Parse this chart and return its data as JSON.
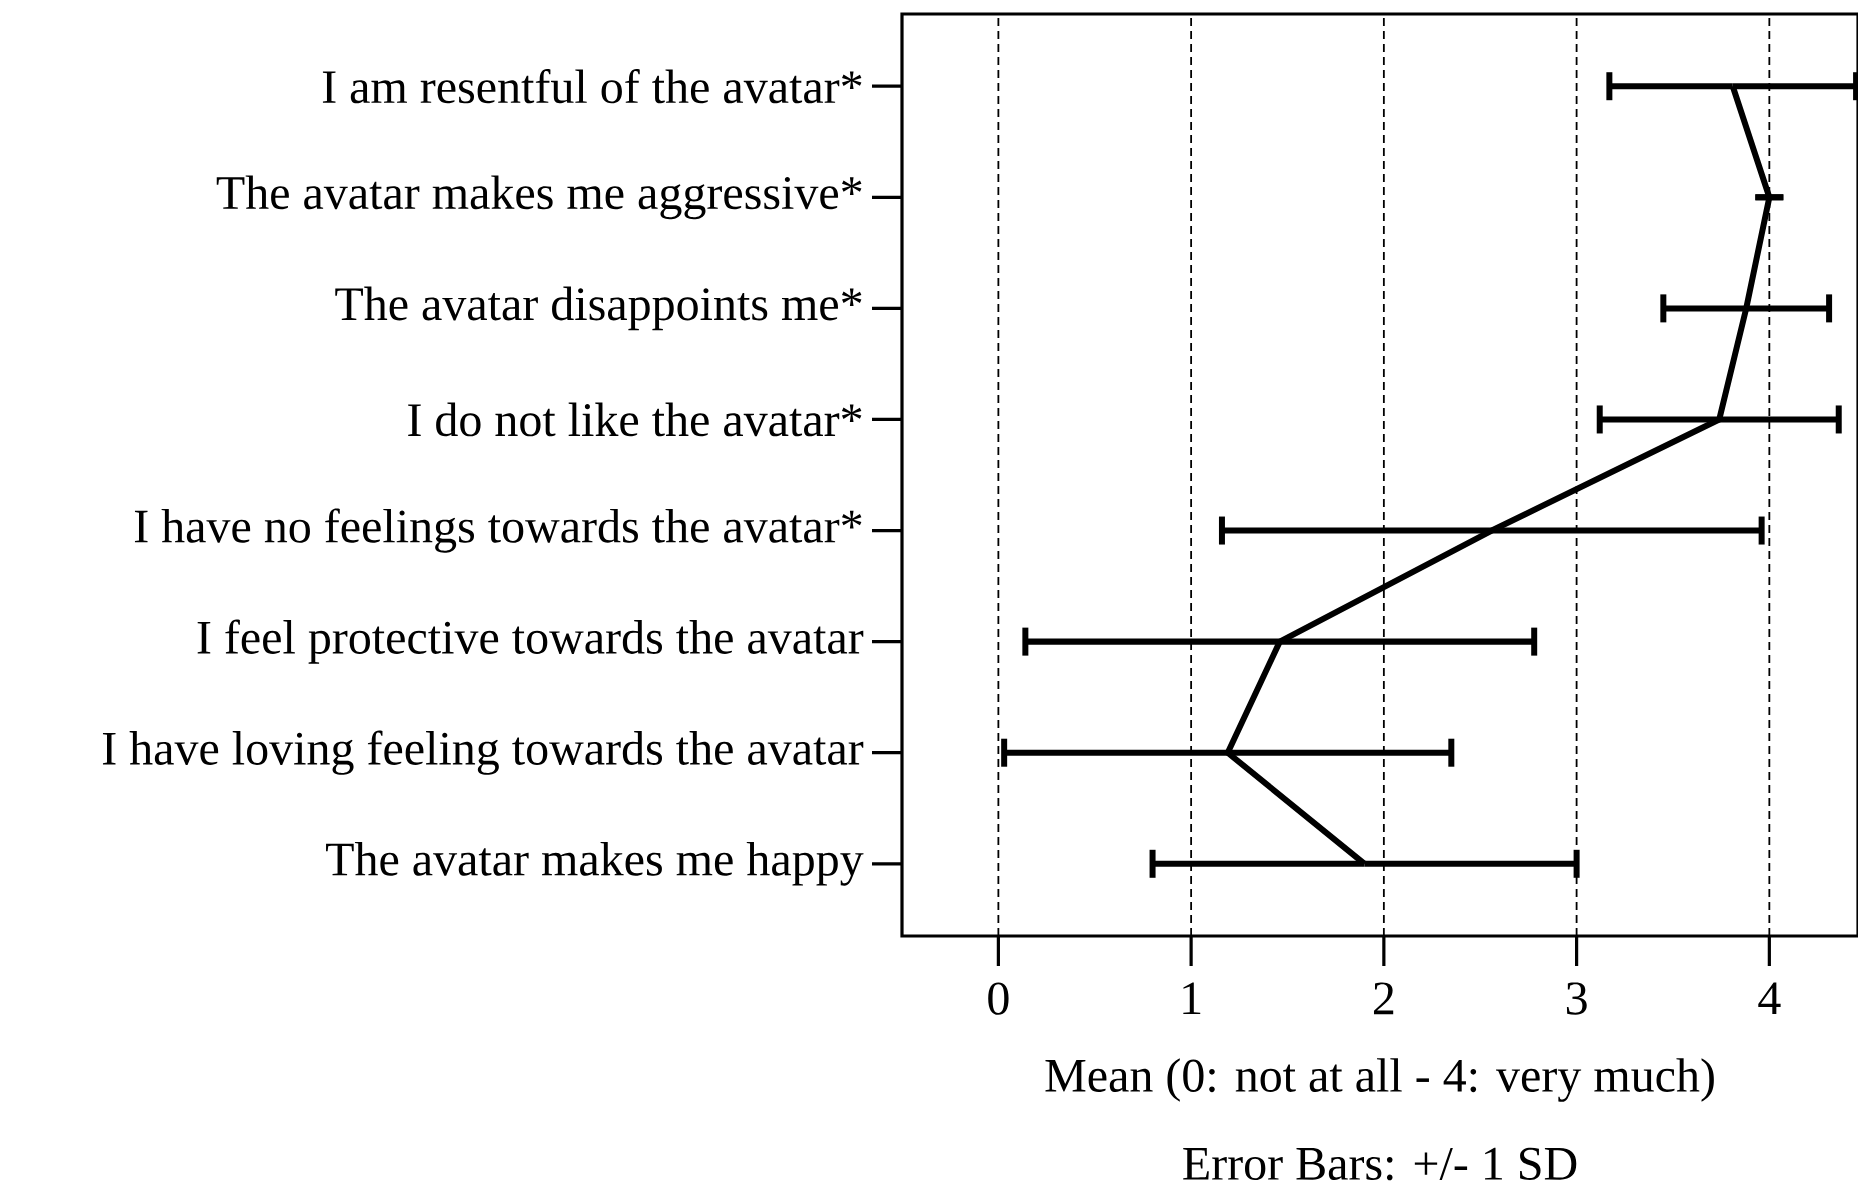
{
  "chart_data": {
    "type": "line",
    "orientation": "horizontal",
    "categories": [
      "I am resentful of the avatar*",
      "The avatar makes me aggressive*",
      "The avatar disappoints me*",
      "I do not like the avatar*",
      "I have no feelings towards the avatar*",
      "I feel protective towards the avatar",
      "I have loving feeling towards the avatar",
      "The avatar makes me happy"
    ],
    "values": [
      3.81,
      4.0,
      3.88,
      3.74,
      2.56,
      1.46,
      1.19,
      1.9
    ],
    "errors": [
      0.64,
      0,
      0.43,
      0.62,
      1.4,
      1.32,
      1.16,
      1.1
    ],
    "color": "#000000",
    "marker": "none",
    "line_style": "solid",
    "xlim": [
      -0.5,
      4.46
    ],
    "xticks": [
      0,
      1,
      2,
      3,
      4
    ],
    "grid": "x",
    "xlabel": "Mean (0: not at all - 4: very much)",
    "annotations": [
      "Error Bars: +/- 1 SD"
    ]
  }
}
